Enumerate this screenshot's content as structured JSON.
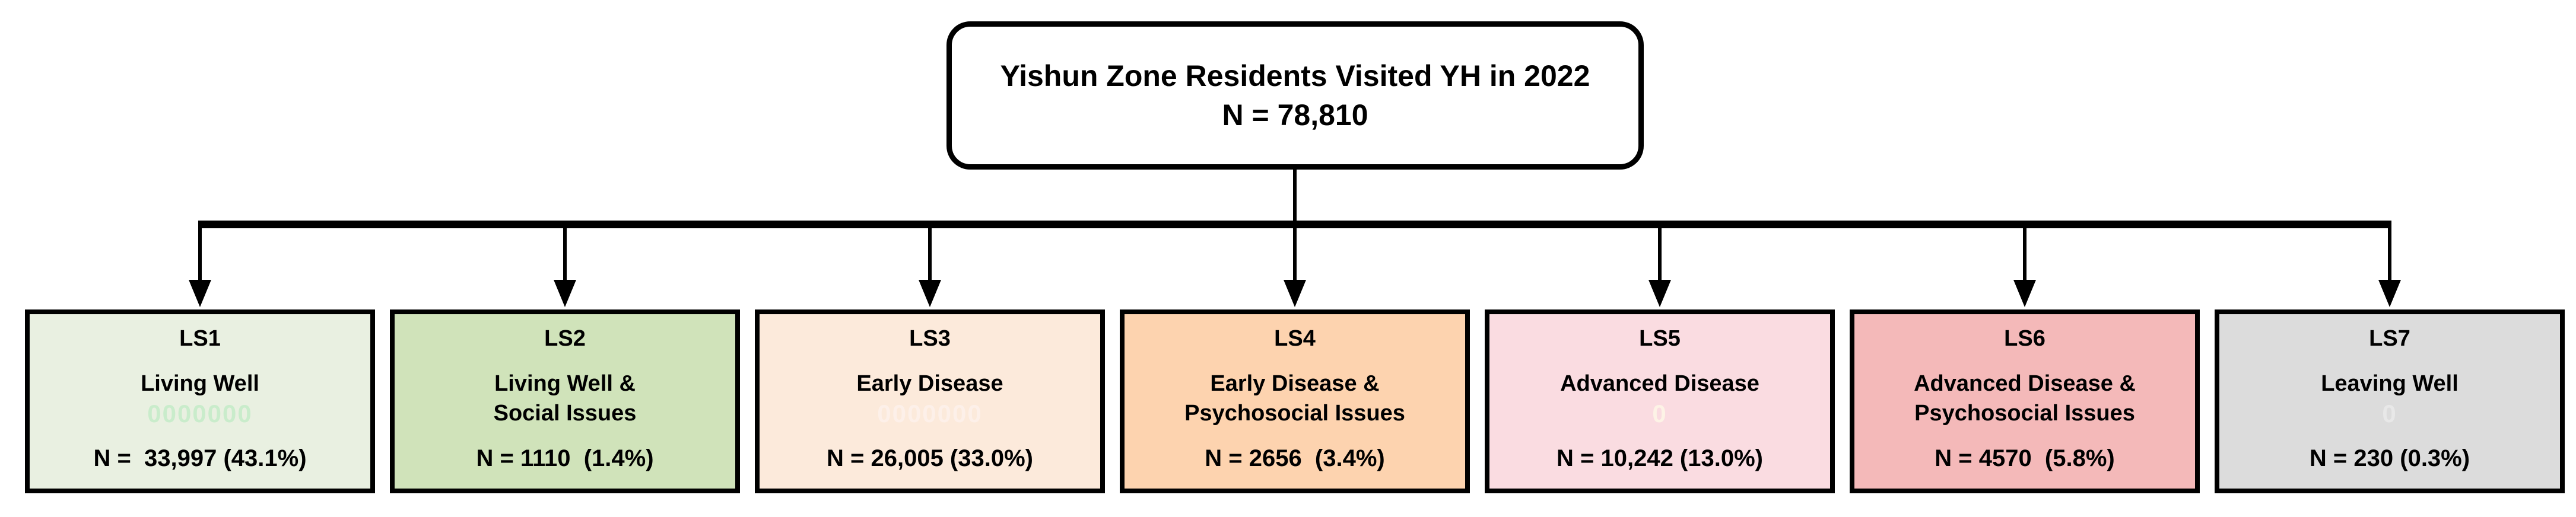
{
  "root": {
    "title": "Yishun Zone Residents Visited YH in 2022",
    "n_label": "N = 78,810"
  },
  "connector": {
    "color": "#000000"
  },
  "boxes": [
    {
      "code": "LS1",
      "title_lines": [
        "Living Well"
      ],
      "watermark": "0000000",
      "watermark_color": "#c9eccb",
      "n_label": "N =  33,997 (43.1%)",
      "bg_color": "#e9f0e1",
      "border_color": "#000000"
    },
    {
      "code": "LS2",
      "title_lines": [
        "Living Well &",
        "Social Issues"
      ],
      "watermark": "",
      "watermark_color": "",
      "n_label": "N = 1110  (1.4%)",
      "bg_color": "#d0e3ba",
      "border_color": "#000000"
    },
    {
      "code": "LS3",
      "title_lines": [
        "Early Disease"
      ],
      "watermark": "0000000",
      "watermark_color": "#fdf0e9",
      "n_label": "N = 26,005 (33.0%)",
      "bg_color": "#fceadb",
      "border_color": "#000000"
    },
    {
      "code": "LS4",
      "title_lines": [
        "Early Disease &",
        "Psychosocial Issues"
      ],
      "watermark": "",
      "watermark_color": "",
      "n_label": "N = 2656  (3.4%)",
      "bg_color": "#fdd3af",
      "border_color": "#000000"
    },
    {
      "code": "LS5",
      "title_lines": [
        "Advanced Disease"
      ],
      "watermark": "0",
      "watermark_color": "#fdf3e6",
      "n_label": "N = 10,242 (13.0%)",
      "bg_color": "#fadce1",
      "border_color": "#000000"
    },
    {
      "code": "LS6",
      "title_lines": [
        "Advanced Disease &",
        "Psychosocial Issues"
      ],
      "watermark": "",
      "watermark_color": "",
      "n_label": "N = 4570  (5.8%)",
      "bg_color": "#f4b9b9",
      "border_color": "#000000"
    },
    {
      "code": "LS7",
      "title_lines": [
        "Leaving Well"
      ],
      "watermark": "0",
      "watermark_color": "#e8e8e8",
      "n_label": "N = 230 (0.3%)",
      "bg_color": "#dcdcdc",
      "border_color": "#000000"
    }
  ]
}
